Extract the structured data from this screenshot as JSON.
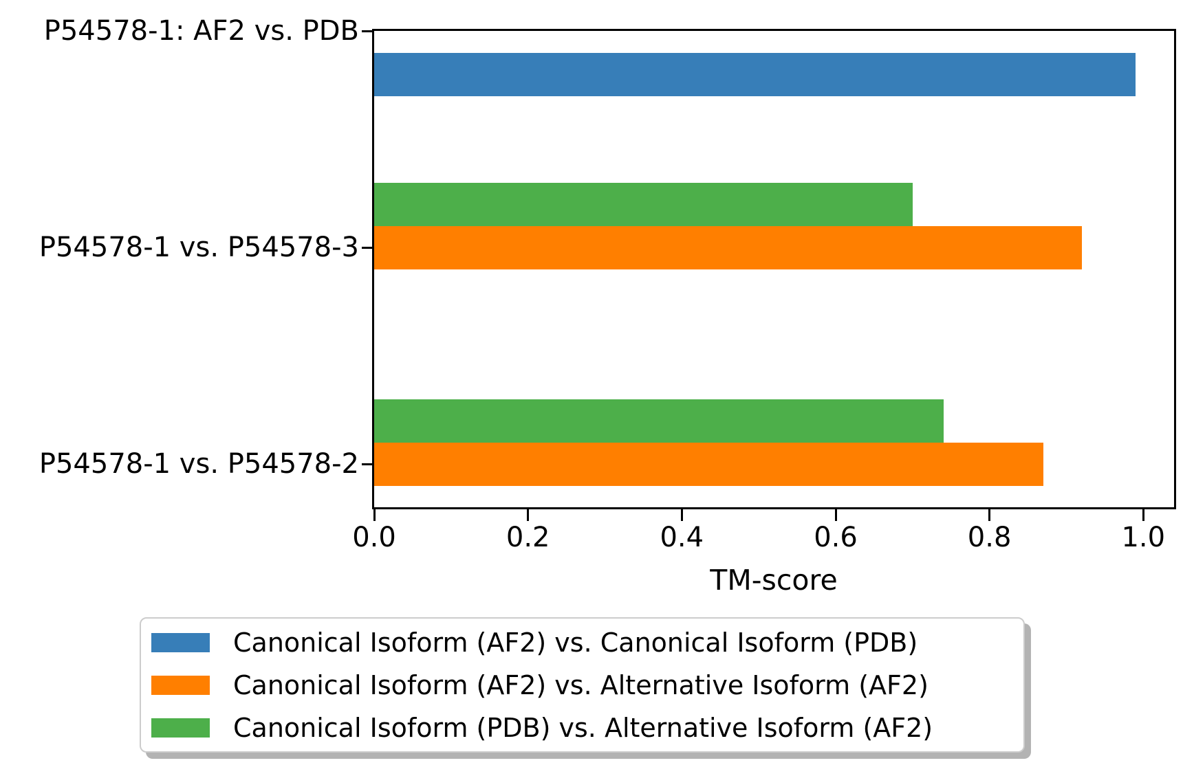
{
  "chart_data": {
    "type": "bar",
    "orientation": "horizontal",
    "title": "",
    "xlabel": "TM-score",
    "ylabel": "",
    "grid": false,
    "categories": [
      "P54578-1: AF2 vs. PDB",
      "P54578-1 vs. P54578-3",
      "P54578-1 vs. P54578-2"
    ],
    "category_axis_positions": [
      2,
      1,
      0
    ],
    "series": [
      {
        "name": "Canonical Isoform (AF2) vs. Canonical Isoform (PDB)",
        "color": "#377eb8",
        "offset_units": -0.2,
        "values": [
          0.99,
          null,
          null
        ]
      },
      {
        "name": "Canonical Isoform (AF2) vs. Alternative Isoform (AF2)",
        "color": "#ff7f00",
        "offset_units": 0.0,
        "values": [
          null,
          0.92,
          0.87
        ]
      },
      {
        "name": "Canonical Isoform (PDB) vs. Alternative Isoform (AF2)",
        "color": "#4daf4a",
        "offset_units": 0.2,
        "values": [
          null,
          0.7,
          0.74
        ]
      }
    ],
    "bar_height_units": 0.2,
    "x_ticks": [
      "0.0",
      "0.2",
      "0.4",
      "0.6",
      "0.8",
      "1.0"
    ],
    "xlim": [
      0,
      1.04
    ],
    "ylim": [
      -0.2,
      2.0
    ],
    "legend_position": "below-plot",
    "axis_color": "#000000",
    "background_color": "#ffffff"
  }
}
